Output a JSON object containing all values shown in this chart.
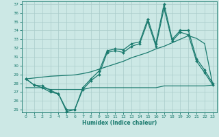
{
  "xlabel": "Humidex (Indice chaleur)",
  "x": [
    0,
    1,
    2,
    3,
    4,
    5,
    6,
    7,
    8,
    9,
    10,
    11,
    12,
    13,
    14,
    15,
    16,
    17,
    18,
    19,
    20,
    21,
    22,
    23
  ],
  "line1": [
    28.5,
    27.8,
    27.7,
    27.2,
    26.8,
    24.8,
    25.0,
    27.5,
    28.5,
    29.4,
    31.7,
    31.9,
    31.8,
    32.5,
    32.7,
    35.3,
    32.5,
    37.0,
    33.0,
    34.0,
    34.0,
    30.8,
    29.5,
    28.0
  ],
  "line2": [
    28.5,
    27.8,
    27.5,
    27.0,
    26.8,
    25.0,
    25.0,
    27.3,
    28.3,
    29.0,
    31.5,
    31.7,
    31.5,
    32.2,
    32.5,
    35.0,
    32.2,
    36.5,
    32.8,
    33.8,
    33.5,
    30.5,
    29.2,
    27.8
  ],
  "trend": [
    28.5,
    28.6,
    28.7,
    28.8,
    28.85,
    28.9,
    28.95,
    29.1,
    29.3,
    29.6,
    29.9,
    30.2,
    30.5,
    30.9,
    31.2,
    31.5,
    31.9,
    32.2,
    32.6,
    33.0,
    33.4,
    33.1,
    32.5,
    27.8
  ],
  "flat": [
    27.5,
    27.5,
    27.5,
    27.3,
    27.3,
    27.3,
    27.3,
    27.3,
    27.5,
    27.5,
    27.5,
    27.5,
    27.5,
    27.5,
    27.5,
    27.5,
    27.5,
    27.7,
    27.7,
    27.7,
    27.7,
    27.7,
    27.7,
    27.8
  ],
  "ylim": [
    25,
    37
  ],
  "xlim": [
    -0.5,
    23.5
  ],
  "yticks": [
    25,
    26,
    27,
    28,
    29,
    30,
    31,
    32,
    33,
    34,
    35,
    36,
    37
  ],
  "xticks": [
    0,
    1,
    2,
    3,
    4,
    5,
    6,
    7,
    8,
    9,
    10,
    11,
    12,
    13,
    14,
    15,
    16,
    17,
    18,
    19,
    20,
    21,
    22,
    23
  ],
  "line_color": "#1a7a6e",
  "bg_color": "#cce8e5",
  "grid_color": "#aaccca"
}
